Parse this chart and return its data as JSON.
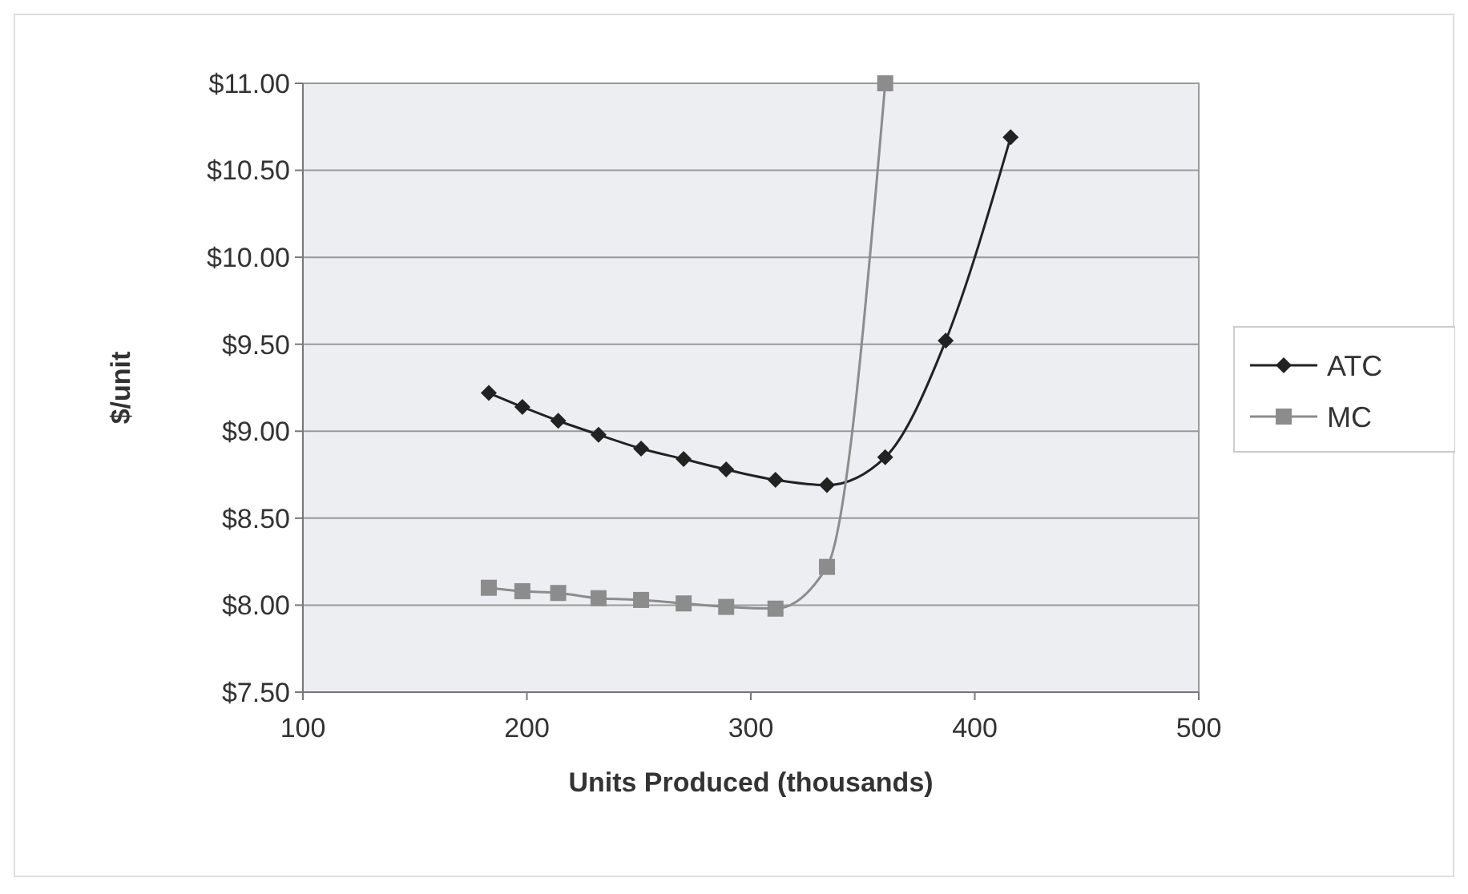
{
  "chart_data": {
    "type": "line",
    "xlabel": "Units Produced (thousands)",
    "ylabel": "$/unit",
    "xlim": [
      100,
      500
    ],
    "xticks": [
      100,
      200,
      300,
      400,
      500
    ],
    "ylim": [
      7.5,
      11
    ],
    "yticks": [
      {
        "value": 7.5,
        "label": "$7.50"
      },
      {
        "value": 8,
        "label": "$8.00"
      },
      {
        "value": 8.5,
        "label": "$8.50"
      },
      {
        "value": 9,
        "label": "$9.00"
      },
      {
        "value": 9.5,
        "label": "$9.50"
      },
      {
        "value": 10,
        "label": "$10.00"
      },
      {
        "value": 10.5,
        "label": "$10.50"
      },
      {
        "value": 11,
        "label": "$11.00"
      }
    ],
    "grid": "y",
    "legend": "right",
    "series": [
      {
        "name": "ATC",
        "color": "#222222",
        "marker": "diamond",
        "x": [
          183,
          198,
          214,
          232,
          251,
          270,
          289,
          311,
          334,
          360,
          387,
          416
        ],
        "values": [
          9.22,
          9.14,
          9.06,
          8.98,
          8.9,
          8.84,
          8.78,
          8.72,
          8.69,
          8.85,
          9.52,
          10.69
        ]
      },
      {
        "name": "MC",
        "color": "#8c8c8c",
        "marker": "square",
        "x": [
          183,
          198,
          214,
          232,
          251,
          270,
          289,
          311,
          334,
          360
        ],
        "values": [
          8.1,
          8.08,
          8.07,
          8.04,
          8.03,
          8.01,
          7.99,
          7.98,
          8.22,
          11
        ]
      }
    ]
  }
}
